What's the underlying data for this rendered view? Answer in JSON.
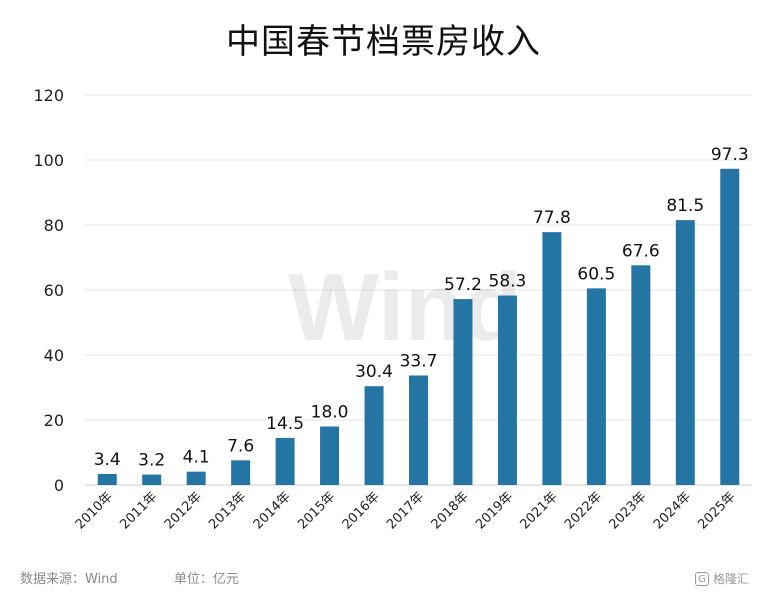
{
  "chart_data": {
    "type": "bar",
    "title": "中国春节档票房收入",
    "categories": [
      "2010年",
      "2011年",
      "2012年",
      "2013年",
      "2014年",
      "2015年",
      "2016年",
      "2017年",
      "2018年",
      "2019年",
      "2021年",
      "2022年",
      "2023年",
      "2024年",
      "2025年"
    ],
    "values": [
      3.4,
      3.2,
      4.1,
      7.6,
      14.5,
      18.0,
      30.4,
      33.7,
      57.2,
      58.3,
      77.8,
      60.5,
      67.6,
      81.5,
      97.3
    ],
    "value_labels": [
      "3.4",
      "3.2",
      "4.1",
      "7.6",
      "14.5",
      "18.0",
      "30.4",
      "33.7",
      "57.2",
      "58.3",
      "77.8",
      "60.5",
      "67.6",
      "81.5",
      "97.3"
    ],
    "ylim": [
      0,
      120
    ],
    "yticks": [
      0,
      20,
      40,
      60,
      80,
      100,
      120
    ],
    "grid": true,
    "bar_color": "#2474a4",
    "xlabel": "",
    "ylabel": ""
  },
  "watermark": "Wind",
  "footer": {
    "source": "数据来源：Wind",
    "unit": "单位：亿元"
  },
  "brand": {
    "logo_icon": "gelonghui-logo-icon",
    "name": "格隆汇"
  }
}
